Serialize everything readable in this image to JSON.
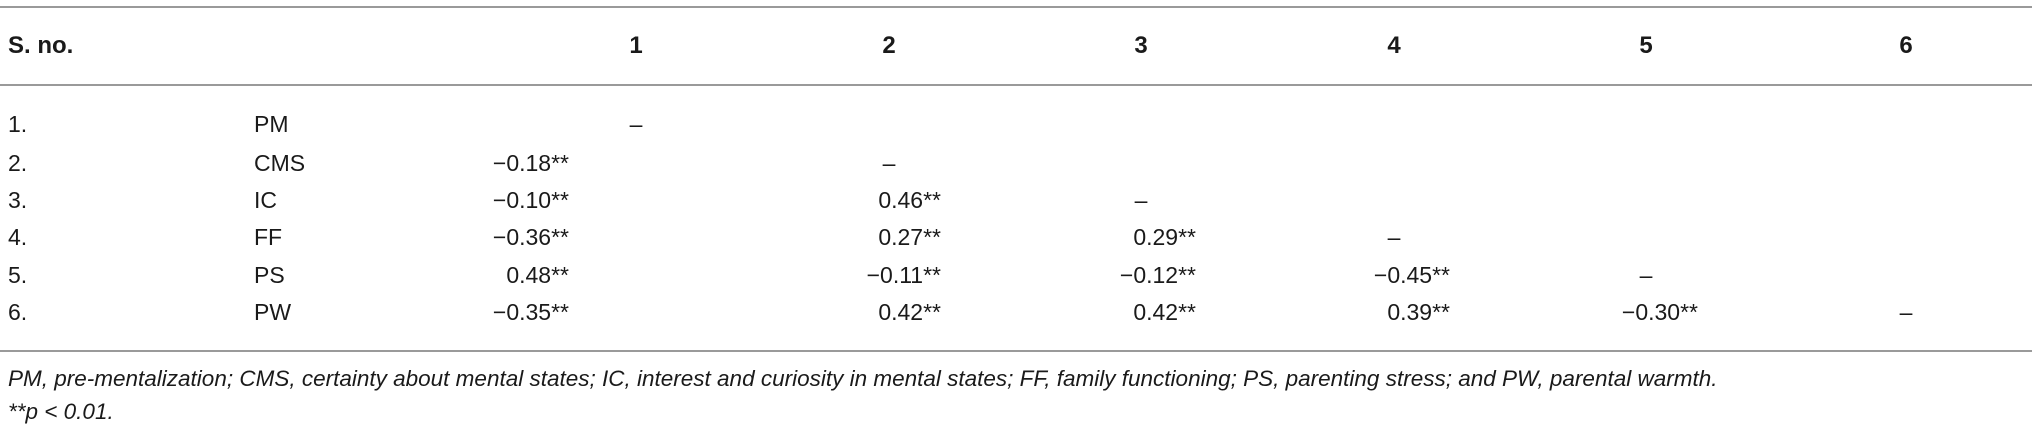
{
  "table": {
    "header": {
      "sno": "S. no.",
      "variable": "",
      "cols": [
        "1",
        "2",
        "3",
        "4",
        "5",
        "6"
      ]
    },
    "rows": [
      {
        "no": "1.",
        "var": "PM",
        "cells": [
          "–",
          "",
          "",
          "",
          "",
          ""
        ]
      },
      {
        "no": "2.",
        "var": "CMS",
        "cells": [
          "−0.18**",
          "–",
          "",
          "",
          "",
          ""
        ]
      },
      {
        "no": "3.",
        "var": "IC",
        "cells": [
          "−0.10**",
          "0.46**",
          "–",
          "",
          "",
          ""
        ]
      },
      {
        "no": "4.",
        "var": "FF",
        "cells": [
          "−0.36**",
          "0.27**",
          "0.29**",
          "–",
          "",
          ""
        ]
      },
      {
        "no": "5.",
        "var": "PS",
        "cells": [
          "0.48**",
          "−0.11**",
          "−0.12**",
          "−0.45**",
          "–",
          ""
        ]
      },
      {
        "no": "6.",
        "var": "PW",
        "cells": [
          "−0.35**",
          "0.42**",
          "0.42**",
          "0.39**",
          "−0.30**",
          "–"
        ]
      }
    ]
  },
  "notes": {
    "abbreviations": "PM, pre-mentalization; CMS, certainty about mental states; IC, interest and curiosity in mental states; FF, family functioning; PS, parenting stress; and PW, parental warmth.",
    "significance": "**p < 0.01."
  }
}
